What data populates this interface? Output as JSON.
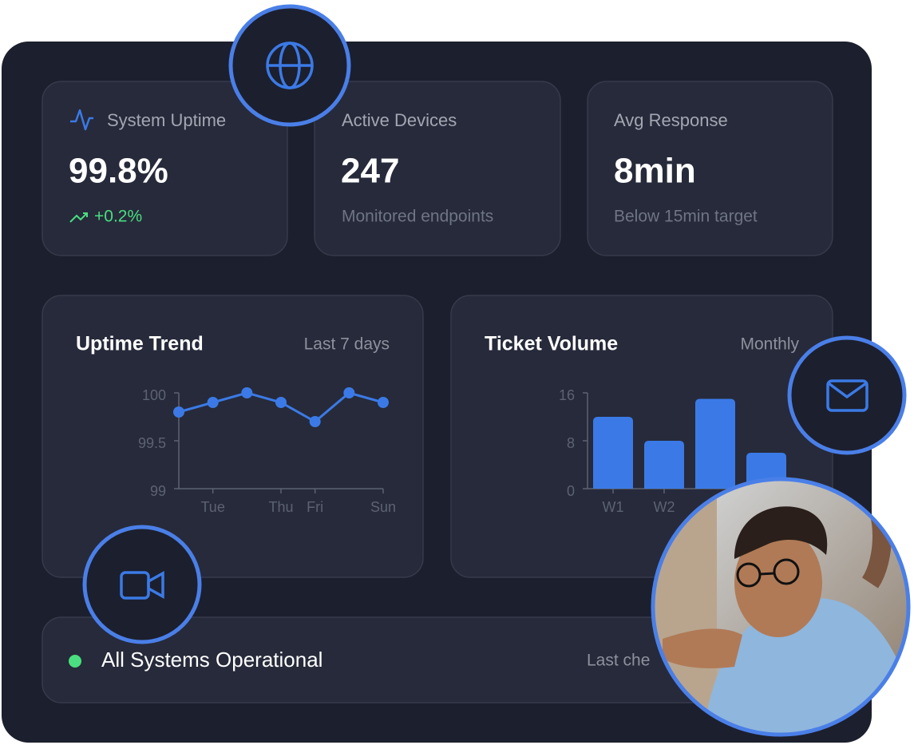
{
  "stats": [
    {
      "label": "System Uptime",
      "value": "99.8%",
      "note": "+0.2%"
    },
    {
      "label": "Active Devices",
      "value": "247",
      "note": "Monitored endpoints"
    },
    {
      "label": "Avg Response",
      "value": "8min",
      "note": "Below 15min target"
    }
  ],
  "chart_data": [
    {
      "type": "line",
      "title": "Uptime Trend",
      "subtitle": "Last 7 days",
      "categories": [
        null,
        "Tue",
        null,
        "Thu",
        "Fri",
        null,
        "Sun"
      ],
      "values": [
        99.8,
        99.9,
        100,
        99.9,
        99.7,
        100,
        99.9
      ],
      "color": "#3b7ae6",
      "ylim": [
        99,
        100
      ],
      "yticks": [
        99,
        99.5,
        100
      ]
    },
    {
      "type": "bar",
      "title": "Ticket Volume",
      "subtitle": "Monthly",
      "categories": [
        "W1",
        "W2",
        null,
        null
      ],
      "values": [
        12,
        8,
        15,
        6
      ],
      "color": "#3b7ae6",
      "ylim": [
        0,
        16
      ],
      "yticks": [
        0,
        8,
        16
      ]
    }
  ],
  "status": {
    "text": "All Systems Operational",
    "note": "Last che"
  }
}
